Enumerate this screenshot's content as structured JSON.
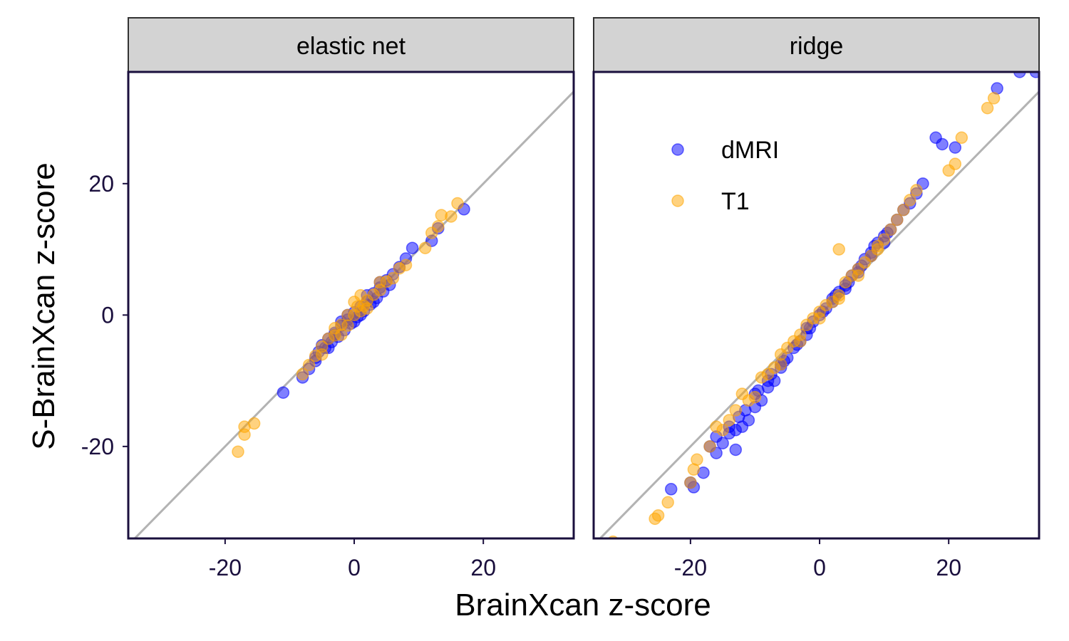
{
  "chart_data": {
    "type": "scatter",
    "xlabel": "BrainXcan z-score",
    "ylabel": "S-BrainXcan z-score",
    "xlim": [
      -35,
      34
    ],
    "ylim": [
      -34,
      37
    ],
    "xticks": [
      -20,
      0,
      20
    ],
    "yticks": [
      -20,
      0,
      20
    ],
    "reference_line": "y = x",
    "legend_position": "top-left of right panel",
    "series_colors": {
      "dMRI": "#0000ff",
      "T1": "#ffa500"
    },
    "reference_line_color": "#b3b3b3",
    "legend": [
      {
        "name": "dMRI",
        "color": "#0000ff"
      },
      {
        "name": "T1",
        "color": "#ffa500"
      }
    ],
    "panels": [
      {
        "title": "elastic net",
        "series": [
          {
            "name": "dMRI",
            "points": [
              [
                -11,
                -11.8
              ],
              [
                -8,
                -9.5
              ],
              [
                -7,
                -8.2
              ],
              [
                -6,
                -7
              ],
              [
                -5.5,
                -5.6
              ],
              [
                -5,
                -4.6
              ],
              [
                -4.5,
                -5
              ],
              [
                -4,
                -3.6
              ],
              [
                -3.5,
                -4.1
              ],
              [
                -3,
                -2.7
              ],
              [
                -2.5,
                -3.3
              ],
              [
                -2,
                -1.6
              ],
              [
                -1.5,
                -2.3
              ],
              [
                -1,
                -0.7
              ],
              [
                -0.5,
                -1.3
              ],
              [
                0,
                0.4
              ],
              [
                0.5,
                -0.3
              ],
              [
                1,
                1.3
              ],
              [
                1.5,
                0.6
              ],
              [
                2,
                2.1
              ],
              [
                2.5,
                1.6
              ],
              [
                3,
                3.3
              ],
              [
                3.5,
                2.6
              ],
              [
                4,
                4.2
              ],
              [
                4.5,
                3.6
              ],
              [
                5,
                5.3
              ],
              [
                5.5,
                4.6
              ],
              [
                6,
                6.2
              ],
              [
                7,
                7.3
              ],
              [
                8,
                8.6
              ],
              [
                9,
                10.2
              ],
              [
                12,
                11.3
              ],
              [
                13,
                13.2
              ],
              [
                17,
                16.1
              ],
              [
                -2,
                -1
              ],
              [
                0,
                -1
              ],
              [
                1,
                0
              ],
              [
                2,
                3
              ],
              [
                3,
                2
              ],
              [
                -1,
                0
              ],
              [
                4,
                5
              ],
              [
                -3,
                -3
              ],
              [
                -4,
                -5
              ],
              [
                -6,
                -6.5
              ]
            ]
          },
          {
            "name": "T1",
            "points": [
              [
                -18,
                -20.8
              ],
              [
                -17,
                -18.2
              ],
              [
                -17,
                -17
              ],
              [
                -15.5,
                -16.5
              ],
              [
                -8,
                -9
              ],
              [
                -7,
                -7.6
              ],
              [
                -6,
                -6.2
              ],
              [
                -5,
                -4.8
              ],
              [
                -4,
                -3.6
              ],
              [
                -3,
                -3.1
              ],
              [
                -2,
                -1.5
              ],
              [
                -1,
                -1.6
              ],
              [
                0,
                0
              ],
              [
                0.5,
                1.3
              ],
              [
                1,
                0.6
              ],
              [
                1.5,
                1.4
              ],
              [
                2,
                2.2
              ],
              [
                3,
                3.1
              ],
              [
                4,
                3.8
              ],
              [
                5,
                5.1
              ],
              [
                6,
                5.6
              ],
              [
                7,
                7.1
              ],
              [
                8,
                7.6
              ],
              [
                11,
                10.2
              ],
              [
                12,
                12.5
              ],
              [
                13,
                13.5
              ],
              [
                13.5,
                15.2
              ],
              [
                15,
                15
              ],
              [
                16,
                17
              ],
              [
                -1,
                0
              ],
              [
                2,
                1
              ],
              [
                -3,
                -2
              ],
              [
                4,
                5
              ],
              [
                -5,
                -6
              ],
              [
                0,
                2
              ],
              [
                1,
                3
              ],
              [
                -2,
                -3
              ]
            ]
          }
        ]
      },
      {
        "title": "ridge",
        "series": [
          {
            "name": "dMRI",
            "points": [
              [
                -23,
                -26.5
              ],
              [
                -20,
                -25.5
              ],
              [
                -19.5,
                -26.2
              ],
              [
                -18,
                -24
              ],
              [
                -17,
                -20
              ],
              [
                -16,
                -21
              ],
              [
                -15,
                -19.5
              ],
              [
                -14,
                -18
              ],
              [
                -13,
                -20.5
              ],
              [
                -12,
                -17
              ],
              [
                -11,
                -16
              ],
              [
                -10,
                -14
              ],
              [
                -9,
                -13
              ],
              [
                -8,
                -11
              ],
              [
                -7,
                -10
              ],
              [
                -6,
                -8
              ],
              [
                -5,
                -6.5
              ],
              [
                -4,
                -5
              ],
              [
                -3,
                -4
              ],
              [
                -2,
                -2
              ],
              [
                -1,
                -1
              ],
              [
                0,
                0
              ],
              [
                1,
                1
              ],
              [
                2,
                2.5
              ],
              [
                3,
                3.5
              ],
              [
                4,
                4.5
              ],
              [
                5,
                6
              ],
              [
                6,
                7
              ],
              [
                7,
                8.5
              ],
              [
                8,
                9
              ],
              [
                9,
                11
              ],
              [
                10,
                12
              ],
              [
                11,
                13
              ],
              [
                12,
                14.5
              ],
              [
                13,
                16
              ],
              [
                14,
                17
              ],
              [
                15,
                18.5
              ],
              [
                16,
                20
              ],
              [
                18,
                27
              ],
              [
                19,
                26
              ],
              [
                21,
                25.5
              ],
              [
                27.5,
                34.5
              ],
              [
                31,
                37
              ],
              [
                33.5,
                37
              ],
              [
                -12.5,
                -15.5
              ],
              [
                -11.5,
                -14.5
              ],
              [
                -9.5,
                -11.5
              ],
              [
                -7.5,
                -9
              ],
              [
                -5.5,
                -7
              ],
              [
                -3.5,
                -4.5
              ],
              [
                -1.5,
                -2
              ],
              [
                0.5,
                0.5
              ],
              [
                2.5,
                3
              ],
              [
                4.5,
                5
              ],
              [
                6.5,
                7.5
              ],
              [
                8.5,
                10.5
              ],
              [
                10.5,
                12.5
              ],
              [
                -14,
                -17
              ],
              [
                -10,
                -12
              ],
              [
                -6,
                -7.5
              ],
              [
                -2,
                -3
              ],
              [
                2,
                2
              ],
              [
                6,
                6.5
              ],
              [
                10,
                11
              ],
              [
                -8,
                -10
              ],
              [
                4,
                4
              ],
              [
                8,
                9.5
              ],
              [
                -16,
                -18.5
              ],
              [
                -13,
                -17.5
              ]
            ]
          },
          {
            "name": "T1",
            "points": [
              [
                -32,
                -34.5
              ],
              [
                -25.5,
                -31
              ],
              [
                -25,
                -30.5
              ],
              [
                -23.5,
                -28.5
              ],
              [
                -20,
                -25.5
              ],
              [
                -19.5,
                -23.5
              ],
              [
                -19,
                -22
              ],
              [
                -16,
                -17
              ],
              [
                -15,
                -17.5
              ],
              [
                -14,
                -16
              ],
              [
                -13,
                -14.5
              ],
              [
                -11,
                -13
              ],
              [
                -10,
                -12.5
              ],
              [
                -8,
                -9
              ],
              [
                -7,
                -8
              ],
              [
                -6,
                -6
              ],
              [
                -5,
                -5
              ],
              [
                -4,
                -4
              ],
              [
                -3,
                -3
              ],
              [
                -2,
                -1.5
              ],
              [
                -1,
                -0.5
              ],
              [
                0,
                0.5
              ],
              [
                1,
                1.5
              ],
              [
                2,
                2
              ],
              [
                3,
                3
              ],
              [
                3,
                10
              ],
              [
                4,
                5
              ],
              [
                5,
                6
              ],
              [
                6,
                7
              ],
              [
                7,
                8
              ],
              [
                8,
                9
              ],
              [
                9,
                10
              ],
              [
                10,
                11.5
              ],
              [
                11,
                13
              ],
              [
                12,
                14.5
              ],
              [
                13,
                16
              ],
              [
                14,
                17.5
              ],
              [
                15,
                19
              ],
              [
                20,
                22
              ],
              [
                21,
                23
              ],
              [
                22,
                27
              ],
              [
                26,
                31.5
              ],
              [
                27,
                33
              ],
              [
                -12,
                -12
              ],
              [
                -9,
                -9.5
              ],
              [
                -6,
                -7.5
              ],
              [
                -3,
                -4
              ],
              [
                0,
                -0.5
              ],
              [
                3,
                2.5
              ],
              [
                6,
                6
              ],
              [
                9,
                10.5
              ],
              [
                -17,
                -20
              ]
            ]
          }
        ]
      }
    ]
  }
}
